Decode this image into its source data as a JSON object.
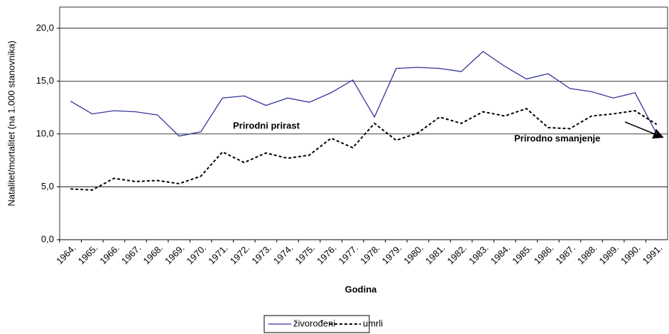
{
  "chart_data": {
    "type": "line",
    "x_label": "Godina",
    "y_label": "Natalitet/mortalitet (na 1.000 stanovnika)",
    "categories": [
      "1964.",
      "1965.",
      "1966.",
      "1967.",
      "1968.",
      "1969.",
      "1970.",
      "1971.",
      "1972.",
      "1973.",
      "1974.",
      "1975.",
      "1976.",
      "1977.",
      "1978.",
      "1979.",
      "1980.",
      "1981.",
      "1982.",
      "1983.",
      "1984.",
      "1985.",
      "1986.",
      "1987.",
      "1988.",
      "1989.",
      "1990.",
      "1991."
    ],
    "series": [
      {
        "name": "živorođeni",
        "color": "#333399",
        "dash": false,
        "values": [
          13.1,
          11.9,
          12.2,
          12.1,
          11.8,
          9.8,
          10.2,
          13.4,
          13.6,
          12.7,
          13.4,
          13.0,
          13.9,
          15.1,
          11.6,
          16.2,
          16.3,
          16.2,
          15.9,
          17.8,
          16.4,
          15.2,
          15.7,
          14.3,
          14.0,
          13.4,
          13.9,
          10.0
        ]
      },
      {
        "name": "umrli",
        "color": "#000000",
        "dash": true,
        "values": [
          4.8,
          4.7,
          5.8,
          5.5,
          5.6,
          5.3,
          6.0,
          8.3,
          7.3,
          8.2,
          7.7,
          8.0,
          9.6,
          8.7,
          11.0,
          9.4,
          10.1,
          11.6,
          11.0,
          12.1,
          11.7,
          12.4,
          10.6,
          10.5,
          11.7,
          11.9,
          12.2,
          10.9
        ]
      }
    ],
    "ylim": [
      0,
      22
    ],
    "yticks": [
      {
        "value": 0,
        "label": "0,0"
      },
      {
        "value": 5,
        "label": "5,0"
      },
      {
        "value": 10,
        "label": "10,0"
      },
      {
        "value": 15,
        "label": "15,0"
      },
      {
        "value": 20,
        "label": "20,0"
      }
    ],
    "grid": true,
    "legend": "bottom",
    "annotations": [
      {
        "text": "Prirodni prirast"
      },
      {
        "text": "Prirodno smanjenje"
      }
    ]
  }
}
